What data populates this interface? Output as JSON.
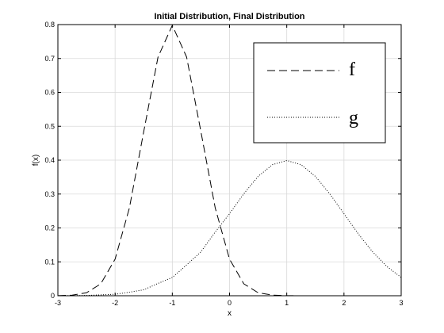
{
  "chart_data": {
    "type": "line",
    "title": "Initial Distribution, Final Distribution",
    "xlabel": "x",
    "ylabel": "f(x)",
    "xlim": [
      -3,
      3
    ],
    "ylim": [
      0,
      0.8
    ],
    "xticks": [
      -3,
      -2,
      -1,
      0,
      1,
      2,
      3
    ],
    "yticks": [
      0,
      0.1,
      0.2,
      0.3,
      0.4,
      0.5,
      0.6,
      0.7,
      0.8
    ],
    "grid": true,
    "legend_position": "top-right",
    "x": [
      -3.0,
      -2.75,
      -2.5,
      -2.25,
      -2.0,
      -1.75,
      -1.5,
      -1.25,
      -1.0,
      -0.75,
      -0.5,
      -0.25,
      0.0,
      0.25,
      0.5,
      0.75,
      1.0,
      1.25,
      1.5,
      1.75,
      2.0,
      2.25,
      2.5,
      2.75,
      3.0
    ],
    "series": [
      {
        "name": "f",
        "style": "dashed",
        "color": "#000000",
        "values": [
          0.0003,
          0.0018,
          0.0088,
          0.0351,
          0.108,
          0.259,
          0.4839,
          0.7041,
          0.7979,
          0.7041,
          0.4839,
          0.259,
          0.108,
          0.0351,
          0.0088,
          0.0018,
          0.0003,
          0.0,
          0.0,
          0.0,
          0.0,
          0.0,
          0.0,
          0.0,
          0.0
        ]
      },
      {
        "name": "g",
        "style": "dotted",
        "color": "#000000",
        "values": [
          0.0001,
          0.0003,
          0.0009,
          0.0025,
          0.0044,
          0.0104,
          0.0175,
          0.0363,
          0.054,
          0.091,
          0.1295,
          0.188,
          0.242,
          0.3011,
          0.3521,
          0.3867,
          0.3989,
          0.3867,
          0.3521,
          0.3011,
          0.242,
          0.1826,
          0.1295,
          0.0863,
          0.054
        ]
      }
    ]
  }
}
